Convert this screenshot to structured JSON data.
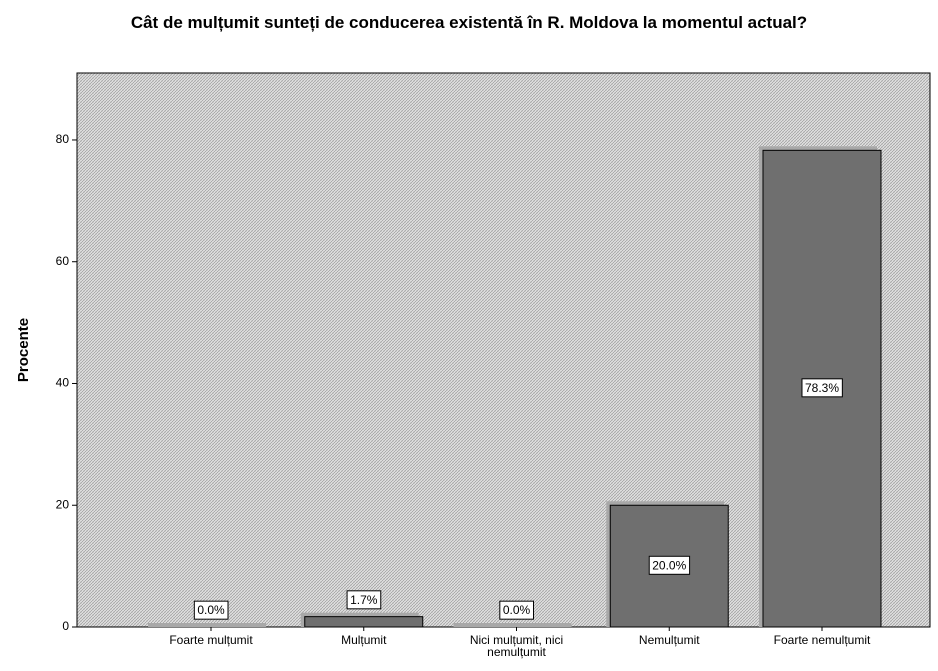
{
  "chart_data": {
    "type": "bar",
    "title": "Cât de mulțumit sunteți de conducerea existentă în R. Moldova la momentul actual?",
    "y_label": "Procente",
    "categories": [
      "Foarte mulțumit",
      "Mulțumit",
      "Nici mulțumit, nici nemulțumit",
      "Nemulțumit",
      "Foarte nemulțumit"
    ],
    "values": [
      0,
      1.7,
      0,
      20,
      78.3
    ],
    "value_labels": [
      "0.0%",
      "1.7%",
      "0.0%",
      "20.0%",
      "78.3%"
    ],
    "color": "#6f6f6f",
    "ylim": [
      0,
      91
    ],
    "yticks": [
      0,
      20,
      40,
      60,
      80
    ]
  }
}
